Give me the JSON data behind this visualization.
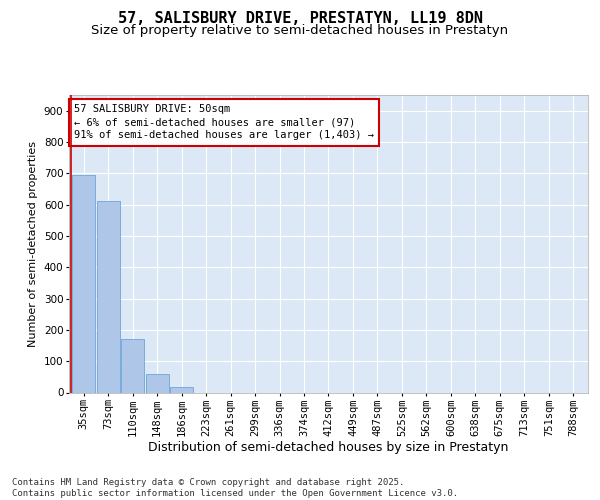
{
  "title1": "57, SALISBURY DRIVE, PRESTATYN, LL19 8DN",
  "title2": "Size of property relative to semi-detached houses in Prestatyn",
  "xlabel": "Distribution of semi-detached houses by size in Prestatyn",
  "ylabel": "Number of semi-detached properties",
  "categories": [
    "35sqm",
    "73sqm",
    "110sqm",
    "148sqm",
    "186sqm",
    "223sqm",
    "261sqm",
    "299sqm",
    "336sqm",
    "374sqm",
    "412sqm",
    "449sqm",
    "487sqm",
    "525sqm",
    "562sqm",
    "600sqm",
    "638sqm",
    "675sqm",
    "713sqm",
    "751sqm",
    "788sqm"
  ],
  "values": [
    693,
    611,
    170,
    60,
    17,
    0,
    0,
    0,
    0,
    0,
    0,
    0,
    0,
    0,
    0,
    0,
    0,
    0,
    0,
    0,
    0
  ],
  "bar_color": "#aec6e8",
  "bar_edge_color": "#5b9bd5",
  "background_color": "#dce8f5",
  "grid_color": "#ffffff",
  "annotation_box_color": "#cc0000",
  "annotation_text": "57 SALISBURY DRIVE: 50sqm\n← 6% of semi-detached houses are smaller (97)\n91% of semi-detached houses are larger (1,403) →",
  "vline_x": -0.5,
  "ylim": [
    0,
    950
  ],
  "yticks": [
    0,
    100,
    200,
    300,
    400,
    500,
    600,
    700,
    800,
    900
  ],
  "footer_text": "Contains HM Land Registry data © Crown copyright and database right 2025.\nContains public sector information licensed under the Open Government Licence v3.0.",
  "title1_fontsize": 11,
  "title2_fontsize": 9.5,
  "ylabel_fontsize": 8,
  "xlabel_fontsize": 9,
  "tick_fontsize": 7.5,
  "annotation_fontsize": 7.5,
  "footer_fontsize": 6.5
}
